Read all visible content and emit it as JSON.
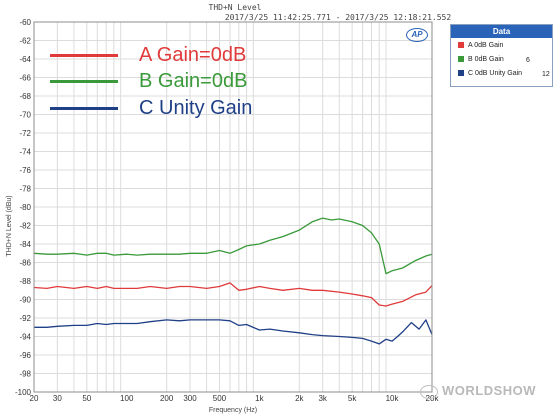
{
  "header": {
    "title": "THD+N Level",
    "timestamp": "2017/3/25 11:42:25.771 - 2017/3/25 12:18:21.552"
  },
  "logo": {
    "text": "AP"
  },
  "legend_panel": {
    "title": "Data",
    "items": [
      {
        "label": "A 0dB Gain",
        "color": "#e03a3a",
        "count": ""
      },
      {
        "label": "B 0dB Gain",
        "color": "#3a9a3a",
        "count": "6"
      },
      {
        "label": "C 0dB Unity Gain",
        "color": "#1f3f86",
        "count": "12"
      }
    ]
  },
  "annotations": [
    {
      "label": "A Gain=0dB",
      "color": "#e03a3a"
    },
    {
      "label": "B Gain=0dB",
      "color": "#3a9a3a"
    },
    {
      "label": "C Unity Gain",
      "color": "#1f3f86"
    }
  ],
  "watermark": {
    "text": "WORLDSHOW"
  },
  "chart_data": {
    "type": "line",
    "title": "THD+N Level",
    "xlabel": "Frequency (Hz)",
    "ylabel": "THD+N Level (dBu)",
    "xscale": "log",
    "xlim": [
      20,
      20000
    ],
    "ylim": [
      -100,
      -60
    ],
    "grid": true,
    "legend": "top-right",
    "x_ticks": [
      {
        "v": 20,
        "label": "20"
      },
      {
        "v": 30,
        "label": "30"
      },
      {
        "v": 50,
        "label": "50"
      },
      {
        "v": 100,
        "label": "100"
      },
      {
        "v": 200,
        "label": "200"
      },
      {
        "v": 300,
        "label": "300"
      },
      {
        "v": 500,
        "label": "500"
      },
      {
        "v": 1000,
        "label": "1k"
      },
      {
        "v": 2000,
        "label": "2k"
      },
      {
        "v": 3000,
        "label": "3k"
      },
      {
        "v": 5000,
        "label": "5k"
      },
      {
        "v": 10000,
        "label": "10k"
      },
      {
        "v": 20000,
        "label": "20k"
      }
    ],
    "y_ticks": [
      -60,
      -62,
      -64,
      -66,
      -68,
      -70,
      -72,
      -74,
      -76,
      -78,
      -80,
      -82,
      -84,
      -86,
      -88,
      -90,
      -92,
      -94,
      -96,
      -98,
      -100
    ],
    "series": [
      {
        "name": "A 0dB Gain",
        "color": "#e03a3a",
        "x": [
          20,
          25,
          30,
          40,
          50,
          60,
          70,
          80,
          100,
          120,
          150,
          200,
          250,
          300,
          400,
          500,
          600,
          700,
          800,
          1000,
          1200,
          1500,
          2000,
          2500,
          3000,
          4000,
          5000,
          6000,
          7000,
          8000,
          9000,
          10000,
          12000,
          15000,
          18000,
          20000
        ],
        "y": [
          -88.7,
          -88.8,
          -88.6,
          -88.8,
          -88.6,
          -88.8,
          -88.6,
          -88.8,
          -88.8,
          -88.8,
          -88.6,
          -88.8,
          -88.6,
          -88.6,
          -88.8,
          -88.6,
          -88.2,
          -89.0,
          -88.9,
          -88.6,
          -88.8,
          -89.0,
          -88.8,
          -89.0,
          -89.0,
          -89.2,
          -89.4,
          -89.6,
          -89.8,
          -90.6,
          -90.7,
          -90.5,
          -90.2,
          -89.5,
          -89.2,
          -88.5
        ]
      },
      {
        "name": "B 0dB Gain",
        "color": "#3a9a3a",
        "x": [
          20,
          25,
          30,
          40,
          50,
          60,
          70,
          80,
          100,
          120,
          150,
          200,
          250,
          300,
          400,
          500,
          600,
          700,
          800,
          1000,
          1200,
          1500,
          2000,
          2500,
          3000,
          3500,
          4000,
          5000,
          6000,
          7000,
          8000,
          9000,
          10000,
          12000,
          15000,
          18000,
          20000
        ],
        "y": [
          -85.0,
          -85.1,
          -85.1,
          -85.0,
          -85.2,
          -85.0,
          -85.0,
          -85.2,
          -85.1,
          -85.2,
          -85.1,
          -85.1,
          -85.1,
          -85.0,
          -85.0,
          -84.7,
          -85.0,
          -84.6,
          -84.2,
          -84.0,
          -83.6,
          -83.2,
          -82.5,
          -81.6,
          -81.2,
          -81.4,
          -81.3,
          -81.6,
          -82.0,
          -82.8,
          -84.0,
          -87.2,
          -86.9,
          -86.6,
          -85.8,
          -85.3,
          -85.1
        ]
      },
      {
        "name": "C 0dB Unity Gain",
        "color": "#1f3f86",
        "x": [
          20,
          25,
          30,
          40,
          50,
          60,
          70,
          80,
          100,
          120,
          150,
          200,
          250,
          300,
          400,
          500,
          600,
          700,
          800,
          1000,
          1200,
          1500,
          2000,
          2500,
          3000,
          4000,
          5000,
          6000,
          7000,
          8000,
          9000,
          10000,
          11000,
          12000,
          14000,
          16000,
          18000,
          20000
        ],
        "y": [
          -93.0,
          -93.0,
          -92.9,
          -92.8,
          -92.8,
          -92.6,
          -92.7,
          -92.6,
          -92.6,
          -92.6,
          -92.4,
          -92.2,
          -92.3,
          -92.2,
          -92.2,
          -92.2,
          -92.3,
          -92.8,
          -92.7,
          -93.3,
          -93.2,
          -93.4,
          -93.6,
          -93.8,
          -93.9,
          -94.0,
          -94.1,
          -94.2,
          -94.5,
          -94.8,
          -94.3,
          -94.5,
          -94.0,
          -93.5,
          -92.5,
          -93.2,
          -92.2,
          -93.8
        ]
      }
    ]
  }
}
